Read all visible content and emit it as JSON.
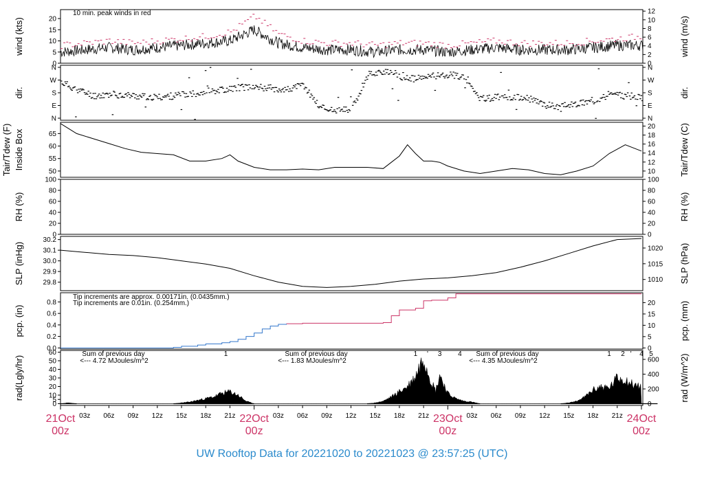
{
  "footer_title": "UW Rooftop Data for 20221020  to  20221023 @ 23:57:25  (UTC)",
  "colors": {
    "accent": "#cc3366",
    "blue": "#3377cc",
    "purple": "#9933cc",
    "footer": "#2a8acc"
  },
  "chart_data": [
    {
      "type": "line",
      "panel": "wind",
      "ylabel": "wind (kts)",
      "ylabel_right": "wind (m/s)",
      "yticks": [
        0,
        5,
        10,
        15,
        20
      ],
      "yticks_right": [
        0,
        2,
        4,
        6,
        8,
        10,
        12
      ],
      "ylim": [
        0,
        24
      ],
      "annotation": "10 min. peak winds in red",
      "series": [
        {
          "x": [
            0,
            3,
            6,
            9,
            12,
            15,
            18,
            21,
            24,
            27,
            30,
            33,
            36,
            39,
            42,
            45,
            48,
            51,
            54,
            57,
            60,
            63,
            66,
            69,
            72
          ],
          "values": [
            5,
            6,
            7,
            6,
            7,
            8,
            9,
            10,
            15,
            9,
            7,
            6,
            6,
            5,
            6,
            6,
            5,
            6,
            7,
            6,
            6,
            6,
            7,
            8,
            8
          ]
        },
        {
          "x": [
            0,
            3,
            6,
            9,
            12,
            15,
            18,
            21,
            24,
            27,
            30,
            33,
            36,
            39,
            42,
            45,
            48,
            51,
            54,
            57,
            60,
            63,
            66,
            69,
            72
          ],
          "values": [
            8,
            9,
            10,
            9,
            10,
            11,
            12,
            14,
            21,
            13,
            10,
            9,
            9,
            8,
            9,
            9,
            8,
            9,
            10,
            9,
            9,
            9,
            10,
            11,
            12
          ]
        }
      ]
    },
    {
      "type": "scatter",
      "panel": "dir",
      "ylabel": "dir.",
      "ylabel_right": "dir.",
      "yticks": [
        "N",
        "E",
        "S",
        "W",
        "N"
      ],
      "ylim": [
        0,
        360
      ],
      "x": [
        0,
        2,
        4,
        6,
        8,
        10,
        12,
        14,
        16,
        18,
        20,
        22,
        24,
        26,
        28,
        30,
        32,
        34,
        36,
        38,
        40,
        42,
        44,
        46,
        48,
        50,
        52,
        54,
        56,
        58,
        60,
        62,
        64,
        66,
        68,
        70,
        72
      ],
      "values": [
        250,
        200,
        160,
        170,
        165,
        155,
        150,
        160,
        170,
        190,
        200,
        215,
        220,
        210,
        200,
        230,
        90,
        60,
        70,
        300,
        320,
        280,
        270,
        290,
        300,
        280,
        140,
        150,
        150,
        140,
        100,
        90,
        110,
        130,
        170,
        160,
        150
      ]
    },
    {
      "type": "line",
      "panel": "temp",
      "ylabel": "Tair/Tdew (F)",
      "ylabel2": "Inside Box",
      "ylabel_right": "Tair/Tdew (C)",
      "yticks": [
        50,
        55,
        60,
        65
      ],
      "yticks_right": [
        10,
        12,
        14,
        16,
        18,
        20
      ],
      "ylim": [
        47.5,
        69.5
      ],
      "series": [
        {
          "x": [
            0,
            1,
            2,
            4,
            6,
            8,
            10,
            12,
            14,
            16,
            18,
            20,
            21,
            22,
            24,
            26,
            28,
            30,
            32,
            34,
            36,
            38,
            40,
            41,
            42,
            43,
            44,
            45,
            46,
            47,
            48,
            50,
            52,
            54,
            56,
            58,
            60,
            62,
            64,
            66,
            68,
            70,
            72
          ],
          "values": [
            69,
            67,
            65,
            63,
            61,
            59,
            57.5,
            57,
            56.5,
            54,
            54,
            55,
            56.5,
            54,
            51.5,
            50.5,
            50.5,
            50.8,
            50.5,
            51.5,
            51.5,
            51.5,
            51,
            53.5,
            56,
            60.5,
            57,
            54,
            54,
            53.5,
            52,
            50,
            49,
            50,
            51,
            50.5,
            49,
            48.5,
            50,
            52,
            57,
            60.5,
            58
          ]
        }
      ]
    },
    {
      "type": "line",
      "panel": "rh",
      "ylabel": "RH (%)",
      "ylabel_right": "RH (%)",
      "yticks": [
        0,
        20,
        40,
        60,
        80,
        100
      ],
      "yticks_right": [
        0,
        20,
        40,
        60,
        80,
        100
      ],
      "ylim": [
        0,
        100
      ],
      "series": []
    },
    {
      "type": "line",
      "panel": "slp",
      "ylabel": "SLP (inHg)",
      "ylabel_right": "SLP (hPa)",
      "yticks": [
        29.8,
        29.9,
        30.0,
        30.1,
        30.2
      ],
      "yticks_right": [
        1010,
        1015,
        1020
      ],
      "ylim": [
        29.72,
        30.23
      ],
      "series": [
        {
          "x": [
            0,
            3,
            6,
            9,
            12,
            15,
            18,
            21,
            24,
            27,
            30,
            33,
            36,
            39,
            42,
            45,
            48,
            51,
            54,
            57,
            60,
            63,
            66,
            69,
            72
          ],
          "values": [
            30.1,
            30.08,
            30.06,
            30.05,
            30.03,
            30.0,
            29.97,
            29.93,
            29.86,
            29.8,
            29.76,
            29.75,
            29.76,
            29.78,
            29.81,
            29.83,
            29.84,
            29.86,
            29.89,
            29.94,
            30.0,
            30.07,
            30.14,
            30.2,
            30.21
          ]
        }
      ]
    },
    {
      "type": "line",
      "panel": "pcp",
      "ylabel": "pcp. (in)",
      "ylabel_right": "pcp. (mm)",
      "yticks": [
        0.0,
        0.2,
        0.4,
        0.6,
        0.8
      ],
      "yticks_right": [
        0,
        5,
        10,
        15,
        20
      ],
      "ylim": [
        -0.02,
        0.96
      ],
      "legend": [
        "Tip increments are approx. 0.00171in. (0.0435mm.)",
        "Tip increments are 0.01in. (0.254mm.)"
      ],
      "series": [
        {
          "name": "Tip increments are 0.01in. (0.254mm.)",
          "x": [
            0,
            12,
            14,
            15,
            17,
            18,
            20,
            21,
            22,
            23,
            24,
            25,
            26,
            27,
            28
          ],
          "values": [
            0,
            0,
            0.01,
            0.03,
            0.05,
            0.07,
            0.09,
            0.11,
            0.15,
            0.2,
            0.26,
            0.33,
            0.38,
            0.41,
            0.42
          ]
        },
        {
          "name": "Tip increments are approx. 0.00171in. (0.0435mm.)",
          "x": [
            28,
            30,
            34,
            38,
            40,
            41,
            42,
            44,
            45,
            46,
            48,
            49,
            50,
            55,
            60,
            65,
            72
          ],
          "values": [
            0.42,
            0.43,
            0.43,
            0.43,
            0.44,
            0.56,
            0.66,
            0.69,
            0.82,
            0.83,
            0.87,
            0.94,
            0.94,
            0.94,
            0.94,
            0.94,
            0.94
          ]
        }
      ]
    },
    {
      "type": "area",
      "panel": "rad",
      "ylabel": "rad(Lgly/hr)",
      "ylabel_right": "rad (W/m^2)",
      "yticks": [
        0,
        5,
        10,
        20,
        30,
        40,
        50,
        60
      ],
      "yticks_right": [
        0,
        200,
        400,
        600
      ],
      "ylim": [
        -2,
        62
      ],
      "annotations": [
        {
          "text": "Sum of previous day",
          "day": 1
        },
        {
          "text": "<--- 4.72 MJoules/m^2",
          "day": 1
        },
        {
          "text": "Sum of previous day",
          "day": 2
        },
        {
          "text": "<--- 1.83 MJoules/m^2",
          "day": 2
        },
        {
          "text": "Sum of previous day",
          "day": 3
        },
        {
          "text": "<--- 4.35 MJoules/m^2",
          "day": 3
        }
      ],
      "peak_markers": [
        {
          "x": 20.5,
          "text": "1"
        },
        {
          "x": 44,
          "text": "1"
        },
        {
          "x": 45.5,
          "text": "'"
        },
        {
          "x": 47,
          "text": "3"
        },
        {
          "x": 49.5,
          "text": "4"
        },
        {
          "x": 68,
          "text": "1"
        },
        {
          "x": 69.7,
          "text": "2"
        },
        {
          "x": 70.7,
          "text": "'"
        },
        {
          "x": 72,
          "text": "4"
        },
        {
          "x": 73.2,
          "text": "5"
        }
      ],
      "series": [
        {
          "x": [
            0,
            1,
            2,
            14,
            15,
            16,
            17,
            18,
            19,
            20,
            21,
            22,
            23,
            24,
            38,
            39,
            40,
            41,
            42,
            43,
            44,
            45,
            46,
            46.5,
            47,
            48,
            49,
            50,
            51,
            52,
            62,
            63,
            64,
            65,
            66,
            67,
            68,
            69,
            70,
            71,
            72,
            72
          ],
          "values": [
            0,
            1,
            0,
            0,
            1,
            2,
            4,
            6,
            8,
            12,
            14,
            10,
            3,
            0,
            0,
            1,
            3,
            8,
            14,
            20,
            32,
            55,
            25,
            15,
            34,
            12,
            6,
            3,
            2,
            0,
            0,
            1,
            3,
            8,
            16,
            20,
            18,
            30,
            28,
            22,
            20,
            0
          ]
        }
      ]
    }
  ],
  "x_axis": {
    "range_hours": [
      0,
      72
    ],
    "hour_ticks": [
      "03z",
      "06z",
      "09z",
      "12z",
      "15z",
      "18z",
      "21z"
    ],
    "day_labels": [
      {
        "date": "21Oct",
        "time": "00z"
      },
      {
        "date": "22Oct",
        "time": "00z"
      },
      {
        "date": "23Oct",
        "time": "00z"
      },
      {
        "date": "24Oct",
        "time": "00z"
      }
    ]
  }
}
